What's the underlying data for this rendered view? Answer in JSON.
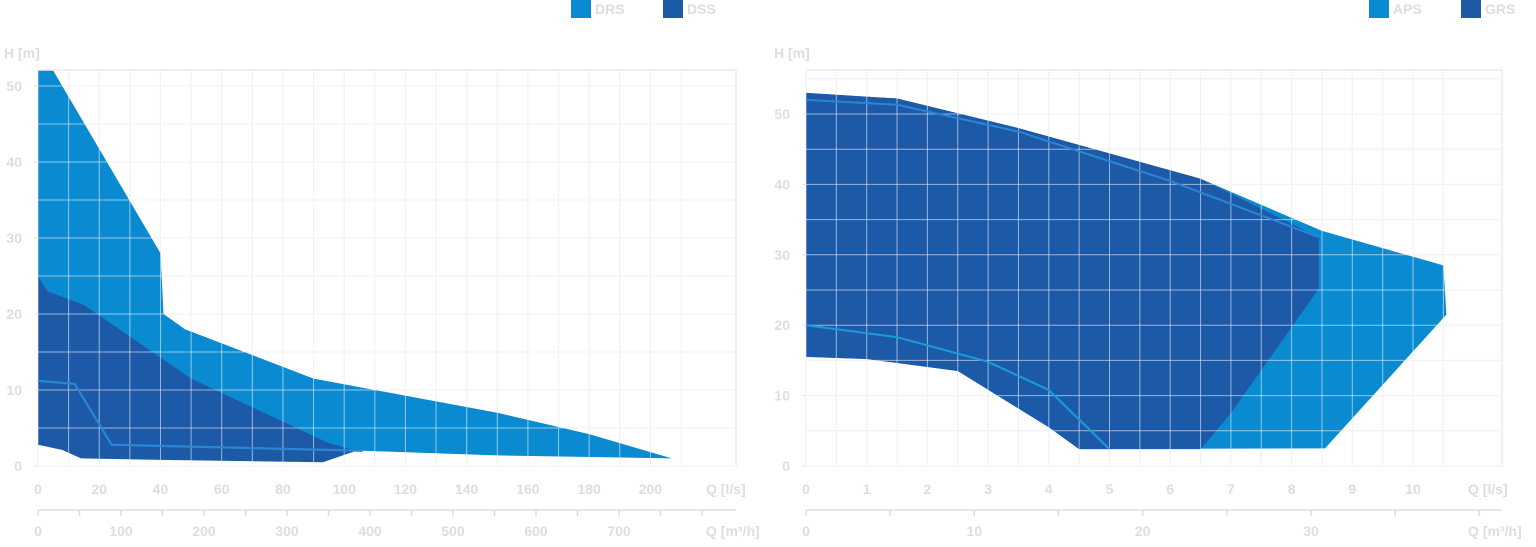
{
  "chart_data": [
    {
      "type": "area",
      "ylabel": "H [m]",
      "xlabel": "Q [l/s]",
      "xlabel2": "Q [m³/h]",
      "xlim": [
        0,
        220
      ],
      "ylim": [
        0,
        52
      ],
      "xticks": [
        0,
        20,
        40,
        60,
        80,
        100,
        120,
        140,
        160,
        180,
        200
      ],
      "xtick_labels": [
        "0",
        "20",
        "40",
        "60",
        "80",
        "100",
        "120",
        "140",
        "160",
        "180",
        "200"
      ],
      "yticks": [
        0,
        10,
        20,
        30,
        40,
        50
      ],
      "ytick_labels": [
        "0",
        "10",
        "20",
        "30",
        "40",
        "50"
      ],
      "x2_ticks": [
        0,
        100,
        200,
        300,
        400,
        500,
        600,
        700
      ],
      "x2_tick_labels": [
        "0",
        "100",
        "200",
        "300",
        "400",
        "500",
        "600",
        "700"
      ],
      "grid": true,
      "legend": "top-right",
      "series": [
        {
          "name": "DRS",
          "color": "#0a8ad0",
          "polygon": [
            [
              0,
              52
            ],
            [
              5,
              52
            ],
            [
              40,
              28
            ],
            [
              41,
              20
            ],
            [
              48,
              18
            ],
            [
              90,
              11.5
            ],
            [
              150,
              7
            ],
            [
              180,
              4.2
            ],
            [
              207,
              1
            ],
            [
              150,
              1.4
            ],
            [
              106,
              2
            ],
            [
              30,
              2.6
            ],
            [
              0,
              2.8
            ]
          ],
          "line": [
            [
              0,
              11.2
            ],
            [
              12,
              10.8
            ],
            [
              24,
              2.8
            ],
            [
              106,
              2
            ]
          ]
        },
        {
          "name": "DSS",
          "color": "#1c5aa8",
          "polygon": [
            [
              0,
              25
            ],
            [
              3,
              23
            ],
            [
              15,
              21.2
            ],
            [
              50,
              11.5
            ],
            [
              95,
              3
            ],
            [
              104,
              2
            ],
            [
              93,
              0.5
            ],
            [
              40,
              0.8
            ],
            [
              14,
              1
            ],
            [
              8,
              2.1
            ],
            [
              0,
              2.8
            ]
          ],
          "line": [
            [
              0,
              11.2
            ],
            [
              12,
              10.8
            ],
            [
              24,
              2.8
            ],
            [
              106,
              2
            ]
          ]
        }
      ]
    },
    {
      "type": "area",
      "ylabel": "H [m]",
      "xlabel": "Q [l/s]",
      "xlabel2": "Q [m³/h]",
      "xlim": [
        0,
        11
      ],
      "ylim": [
        0,
        58
      ],
      "xticks": [
        0,
        1,
        2,
        3,
        4,
        5,
        6,
        7,
        8,
        9,
        10
      ],
      "xtick_labels": [
        "0",
        "1",
        "2",
        "3",
        "4",
        "5",
        "6",
        "7",
        "8",
        "9",
        "10"
      ],
      "yticks": [
        0,
        10,
        20,
        30,
        40,
        50
      ],
      "ytick_labels": [
        "0",
        "10",
        "20",
        "30",
        "40",
        "50"
      ],
      "x2_ticks": [
        0,
        10,
        20,
        30
      ],
      "x2_tick_labels": [
        "0",
        "10",
        "20",
        "30"
      ],
      "grid": true,
      "legend": "top-right",
      "series": [
        {
          "name": "APS",
          "color": "#0a8ad0",
          "polygon": [
            [
              0,
              53
            ],
            [
              1.5,
              52.2
            ],
            [
              3.5,
              48
            ],
            [
              6.5,
              40.8
            ],
            [
              8.5,
              33.4
            ],
            [
              10.5,
              28.5
            ],
            [
              10.55,
              21.5
            ],
            [
              8.55,
              2.5
            ],
            [
              4.5,
              2.4
            ],
            [
              4,
              5.5
            ],
            [
              2.5,
              13.5
            ],
            [
              1,
              15.2
            ],
            [
              0,
              15.5
            ]
          ],
          "line": [
            [
              0,
              20
            ],
            [
              1.5,
              18.3
            ],
            [
              3,
              14.8
            ],
            [
              4,
              10.8
            ],
            [
              5,
              2.4
            ]
          ]
        },
        {
          "name": "GRS",
          "color": "#1c5aa8",
          "polygon": [
            [
              0,
              53
            ],
            [
              1.5,
              52.2
            ],
            [
              3.5,
              48
            ],
            [
              6.5,
              40.8
            ],
            [
              8.45,
              32.5
            ],
            [
              8.45,
              25.2
            ],
            [
              7,
              7.5
            ],
            [
              6.5,
              2.4
            ],
            [
              4.5,
              2.4
            ],
            [
              4,
              5.5
            ],
            [
              2.5,
              13.5
            ],
            [
              1,
              15.2
            ],
            [
              0,
              15.5
            ]
          ],
          "line": [
            [
              0,
              52
            ],
            [
              1.5,
              51.3
            ],
            [
              3.5,
              47.5
            ],
            [
              6,
              40.5
            ],
            [
              8.45,
              32.5
            ]
          ]
        }
      ]
    }
  ]
}
